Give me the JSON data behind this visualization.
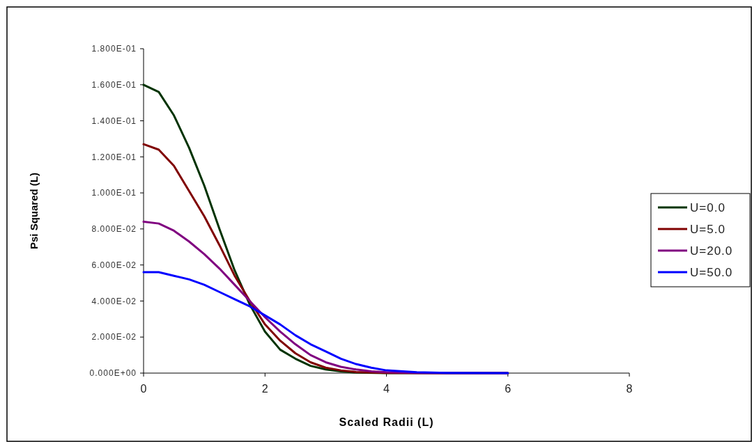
{
  "chart_data": {
    "type": "line",
    "xlabel": "Scaled Radii (L)",
    "ylabel": "Psi Squared (L)",
    "xlim": [
      0,
      8
    ],
    "xticks": [
      0,
      2,
      4,
      6,
      8
    ],
    "ylim": [
      0,
      0.18
    ],
    "yticks": [
      {
        "value": 0,
        "label": "0.000E+00"
      },
      {
        "value": 0.02,
        "label": "2.000E-02"
      },
      {
        "value": 0.04,
        "label": "4.000E-02"
      },
      {
        "value": 0.06,
        "label": "6.000E-02"
      },
      {
        "value": 0.08,
        "label": "8.000E-02"
      },
      {
        "value": 0.1,
        "label": "1.000E-01"
      },
      {
        "value": 0.12,
        "label": "1.200E-01"
      },
      {
        "value": 0.14,
        "label": "1.400E-01"
      },
      {
        "value": 0.16,
        "label": "1.600E-01"
      },
      {
        "value": 0.18,
        "label": "1.800E-01"
      }
    ],
    "grid": false,
    "legend": "right",
    "marker": "none",
    "line_style": "solid",
    "series": [
      {
        "name": "U=0.0",
        "color": "#003300",
        "x": [
          0,
          0.25,
          0.5,
          0.75,
          1,
          1.25,
          1.5,
          1.75,
          2,
          2.25,
          2.5,
          2.75,
          3,
          3.25,
          3.5,
          4,
          5,
          6
        ],
        "values": [
          0.16,
          0.156,
          0.143,
          0.125,
          0.104,
          0.08,
          0.057,
          0.038,
          0.023,
          0.013,
          0.008,
          0.004,
          0.002,
          0.001,
          0.0003,
          0,
          0,
          0
        ]
      },
      {
        "name": "U=5.0",
        "color": "#800000",
        "x": [
          0,
          0.25,
          0.5,
          0.75,
          1,
          1.25,
          1.5,
          1.75,
          2,
          2.25,
          2.5,
          2.75,
          3,
          3.25,
          3.5,
          4,
          5,
          6
        ],
        "values": [
          0.127,
          0.124,
          0.115,
          0.101,
          0.087,
          0.071,
          0.054,
          0.04,
          0.027,
          0.018,
          0.011,
          0.006,
          0.003,
          0.0015,
          0.0006,
          0.0001,
          0,
          0
        ]
      },
      {
        "name": "U=20.0",
        "color": "#800080",
        "x": [
          0,
          0.25,
          0.5,
          0.75,
          1,
          1.25,
          1.5,
          1.75,
          2,
          2.25,
          2.5,
          2.75,
          3,
          3.25,
          3.5,
          3.75,
          4,
          4.5,
          5,
          6
        ],
        "values": [
          0.084,
          0.083,
          0.079,
          0.073,
          0.066,
          0.058,
          0.049,
          0.04,
          0.031,
          0.023,
          0.016,
          0.01,
          0.006,
          0.0035,
          0.002,
          0.001,
          0.0005,
          0.0001,
          0,
          0
        ]
      },
      {
        "name": "U=50.0",
        "color": "#0000ff",
        "x": [
          0,
          0.25,
          0.5,
          0.75,
          1,
          1.25,
          1.5,
          1.75,
          2,
          2.25,
          2.5,
          2.75,
          3,
          3.25,
          3.5,
          3.75,
          4,
          4.5,
          5,
          6
        ],
        "values": [
          0.056,
          0.056,
          0.054,
          0.052,
          0.049,
          0.045,
          0.041,
          0.037,
          0.032,
          0.027,
          0.021,
          0.016,
          0.012,
          0.008,
          0.005,
          0.003,
          0.0015,
          0.0005,
          0.0001,
          0
        ]
      }
    ]
  }
}
